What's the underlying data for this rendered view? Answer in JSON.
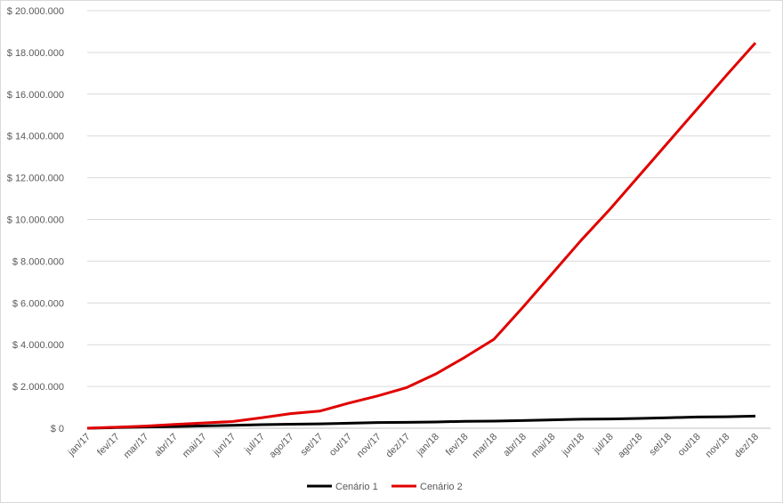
{
  "chart_data": {
    "type": "line",
    "categories": [
      "jan/17",
      "fev/17",
      "mar/17",
      "abr/17",
      "mai/17",
      "jun/17",
      "jul/17",
      "ago/17",
      "set/17",
      "out/17",
      "nov/17",
      "dez/17",
      "jan/18",
      "fev/18",
      "mar/18",
      "abr/18",
      "mai/18",
      "jun/18",
      "jul/18",
      "ago/18",
      "set/18",
      "out/18",
      "nov/18",
      "dez/18"
    ],
    "series": [
      {
        "name": "Cenário 1",
        "color": "#000000",
        "values": [
          0,
          30000,
          60000,
          80000,
          110000,
          140000,
          170000,
          190000,
          210000,
          240000,
          270000,
          280000,
          300000,
          330000,
          340000,
          370000,
          400000,
          430000,
          440000,
          470000,
          500000,
          540000,
          550000,
          580000
        ]
      },
      {
        "name": "Cenário 2",
        "color": "#e00000",
        "values": [
          0,
          50000,
          100000,
          180000,
          250000,
          320000,
          500000,
          700000,
          820000,
          1200000,
          1550000,
          1950000,
          2600000,
          3400000,
          4260000,
          5800000,
          7400000,
          9000000,
          10500000,
          12100000,
          13700000,
          15300000,
          16900000,
          18460000
        ]
      }
    ],
    "ylim": [
      0,
      20000000
    ],
    "yticks": [
      {
        "value": 0,
        "label": "$ 0"
      },
      {
        "value": 2000000,
        "label": "$ 2.000.000"
      },
      {
        "value": 4000000,
        "label": "$ 4.000.000"
      },
      {
        "value": 6000000,
        "label": "$ 6.000.000"
      },
      {
        "value": 8000000,
        "label": "$ 8.000.000"
      },
      {
        "value": 10000000,
        "label": "$ 10.000.000"
      },
      {
        "value": 12000000,
        "label": "$ 12.000.000"
      },
      {
        "value": 14000000,
        "label": "$ 14.000.000"
      },
      {
        "value": 16000000,
        "label": "$ 16.000.000"
      },
      {
        "value": 18000000,
        "label": "$ 18.000.000"
      },
      {
        "value": 20000000,
        "label": "$ 20.000.000"
      }
    ],
    "grid": true,
    "legend": "bottom"
  }
}
